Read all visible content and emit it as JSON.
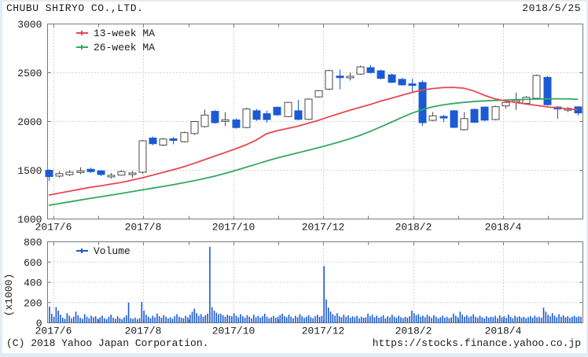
{
  "header": {
    "title": "CHUBU SHIRYO CO.,LTD.",
    "date": "2018/5/25"
  },
  "footer": {
    "copyright": "(C) 2018 Yahoo Japan Corporation.",
    "url": "https://stocks.finance.yahoo.co.jp"
  },
  "colors": {
    "up_fill": "#ffffff",
    "up_border": "#4a4a4a",
    "down": "#1b5ad2",
    "ma13": "#e8484e",
    "ma26": "#34a861",
    "volume": "#1b5ad2",
    "grid": "#a9a9a9",
    "axis": "#7a7a7a",
    "text": "#1a1a1a"
  },
  "chart_data": [
    {
      "type": "candlestick",
      "title": "CHUBU SHIRYO CO.,LTD. weekly price",
      "legend": [
        {
          "label": "13-week MA",
          "color_key": "ma13"
        },
        {
          "label": "26-week MA",
          "color_key": "ma26"
        }
      ],
      "ylim": [
        1000,
        3000
      ],
      "yticks": [
        1000,
        1500,
        2000,
        2500,
        3000
      ],
      "xtick_labels": [
        "2017/6",
        "2017/8",
        "2017/10",
        "2017/12",
        "2018/2",
        "2018/4"
      ],
      "grid": true,
      "candles": [
        [
          1500,
          1510,
          1390,
          1435
        ],
        [
          1440,
          1490,
          1425,
          1465
        ],
        [
          1455,
          1500,
          1440,
          1480
        ],
        [
          1488,
          1530,
          1460,
          1493
        ],
        [
          1510,
          1525,
          1472,
          1486
        ],
        [
          1494,
          1500,
          1440,
          1456
        ],
        [
          1445,
          1472,
          1415,
          1448
        ],
        [
          1450,
          1500,
          1444,
          1486
        ],
        [
          1468,
          1492,
          1420,
          1472
        ],
        [
          1480,
          1812,
          1462,
          1802
        ],
        [
          1830,
          1846,
          1756,
          1772
        ],
        [
          1758,
          1832,
          1748,
          1820
        ],
        [
          1822,
          1842,
          1766,
          1810
        ],
        [
          1792,
          1896,
          1784,
          1886
        ],
        [
          1876,
          2006,
          1862,
          2000
        ],
        [
          1948,
          2122,
          1938,
          2066
        ],
        [
          2104,
          2118,
          1978,
          1988
        ],
        [
          2012,
          2096,
          1954,
          2018
        ],
        [
          2016,
          2032,
          1926,
          1938
        ],
        [
          1938,
          2140,
          1930,
          2128
        ],
        [
          2110,
          2128,
          2006,
          2022
        ],
        [
          2080,
          2112,
          1988,
          2020
        ],
        [
          2146,
          2152,
          2058,
          2068
        ],
        [
          2050,
          2202,
          2044,
          2196
        ],
        [
          2110,
          2222,
          2012,
          2022
        ],
        [
          2022,
          2236,
          2014,
          2230
        ],
        [
          2252,
          2322,
          2244,
          2316
        ],
        [
          2332,
          2530,
          2324,
          2522
        ],
        [
          2466,
          2532,
          2330,
          2452
        ],
        [
          2456,
          2502,
          2420,
          2464
        ],
        [
          2486,
          2574,
          2478,
          2560
        ],
        [
          2552,
          2580,
          2492,
          2502
        ],
        [
          2520,
          2532,
          2432,
          2442
        ],
        [
          2478,
          2492,
          2394,
          2402
        ],
        [
          2432,
          2448,
          2366,
          2376
        ],
        [
          2386,
          2438,
          2290,
          2372
        ],
        [
          2400,
          2420,
          1956,
          1988
        ],
        [
          2012,
          2098,
          2002,
          2058
        ],
        [
          2052,
          2068,
          1994,
          2040
        ],
        [
          2110,
          2118,
          1932,
          1940
        ],
        [
          1916,
          2096,
          1908,
          2030
        ],
        [
          2124,
          2132,
          1986,
          1992
        ],
        [
          2148,
          2154,
          2004,
          2014
        ],
        [
          2020,
          2162,
          2012,
          2152
        ],
        [
          2160,
          2226,
          2130,
          2196
        ],
        [
          2212,
          2296,
          2118,
          2216
        ],
        [
          2186,
          2260,
          2176,
          2248
        ],
        [
          2238,
          2482,
          2230,
          2472
        ],
        [
          2452,
          2466,
          2162,
          2172
        ],
        [
          2148,
          2158,
          2026,
          2128
        ],
        [
          2116,
          2148,
          2096,
          2134
        ],
        [
          2150,
          2156,
          2062,
          2088
        ]
      ],
      "ma13": [
        1245,
        1265,
        1285,
        1305,
        1325,
        1340,
        1358,
        1375,
        1398,
        1422,
        1450,
        1478,
        1505,
        1535,
        1570,
        1608,
        1645,
        1682,
        1720,
        1760,
        1810,
        1875,
        1905,
        1928,
        1952,
        1982,
        2012,
        2048,
        2082,
        2115,
        2145,
        2175,
        2210,
        2238,
        2268,
        2298,
        2322,
        2338,
        2348,
        2350,
        2342,
        2312,
        2268,
        2232,
        2212,
        2195,
        2180,
        2165,
        2150,
        2140,
        2130,
        2120
      ],
      "ma26": [
        1140,
        1158,
        1176,
        1194,
        1212,
        1228,
        1245,
        1262,
        1280,
        1298,
        1316,
        1334,
        1352,
        1372,
        1392,
        1415,
        1440,
        1468,
        1498,
        1530,
        1562,
        1595,
        1625,
        1652,
        1678,
        1705,
        1732,
        1760,
        1790,
        1822,
        1858,
        1900,
        1945,
        1992,
        2040,
        2085,
        2122,
        2150,
        2170,
        2185,
        2196,
        2205,
        2211,
        2216,
        2220,
        2224,
        2227,
        2230,
        2232,
        2233,
        2232,
        2228
      ]
    },
    {
      "type": "bar",
      "title": "Volume",
      "legend": [
        {
          "label": "Volume",
          "color_key": "volume"
        }
      ],
      "ylabel": "(x1000)",
      "ylim": [
        0,
        800
      ],
      "yticks": [
        0,
        200,
        400,
        600,
        800
      ],
      "xtick_labels": [
        "2017/6",
        "2017/8",
        "2017/10",
        "2017/12",
        "2018/2",
        "2018/4"
      ],
      "grid": true,
      "values": [
        160,
        90,
        60,
        155,
        120,
        80,
        50,
        40,
        95,
        70,
        45,
        60,
        110,
        75,
        50,
        40,
        85,
        60,
        45,
        70,
        55,
        65,
        40,
        55,
        70,
        45,
        35,
        60,
        80,
        50,
        40,
        65,
        45,
        35,
        55,
        75,
        200,
        45,
        40,
        50,
        35,
        45,
        205,
        120,
        80,
        60,
        45,
        70,
        55,
        90,
        65,
        50,
        75,
        60,
        45,
        55,
        40,
        65,
        85,
        60,
        50,
        45,
        70,
        55,
        80,
        110,
        140,
        95,
        70,
        85,
        60,
        75,
        90,
        750,
        155,
        120,
        100,
        85,
        90,
        75,
        60,
        80,
        70,
        65,
        95,
        70,
        55,
        85,
        65,
        50,
        75,
        60,
        45,
        80,
        55,
        70,
        50,
        65,
        90,
        60,
        45,
        55,
        70,
        50,
        60,
        75,
        90,
        65,
        55,
        80,
        60,
        45,
        70,
        55,
        85,
        65,
        50,
        60,
        75,
        55,
        45,
        65,
        80,
        60,
        70,
        560,
        230,
        150,
        110,
        85,
        70,
        95,
        65,
        55,
        80,
        60,
        75,
        50,
        65,
        55,
        70,
        45,
        60,
        50,
        55,
        90,
        65,
        80,
        55,
        70,
        50,
        60,
        75,
        45,
        65,
        55,
        80,
        60,
        50,
        70,
        55,
        45,
        60,
        50,
        65,
        120,
        95,
        75,
        85,
        60,
        70,
        55,
        80,
        65,
        50,
        75,
        60,
        45,
        55,
        70,
        50,
        60,
        45,
        55,
        90,
        70,
        55,
        110,
        80,
        60,
        75,
        55,
        65,
        85,
        60,
        50,
        70,
        55,
        45,
        65,
        50,
        60,
        55,
        70,
        45,
        75,
        55,
        65,
        50,
        80,
        60,
        45,
        70,
        55,
        65,
        50,
        60,
        45,
        55,
        65,
        50,
        70,
        55,
        60,
        50,
        150,
        110,
        80,
        65,
        95,
        70,
        55,
        85,
        60,
        75,
        55,
        65,
        50,
        60,
        70,
        55,
        65,
        60
      ]
    }
  ]
}
